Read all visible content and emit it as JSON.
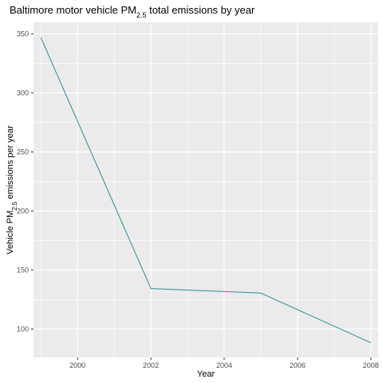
{
  "chart_data": {
    "type": "line",
    "title": {
      "prefix": "Baltimore motor vehicle PM",
      "subscript": "2.5",
      "suffix": " total emissions by year"
    },
    "xlabel": "Year",
    "ylabel": {
      "prefix": "Vehicle PM",
      "subscript": "2.5",
      "suffix": " emissions per year"
    },
    "x": [
      1999,
      2002,
      2005,
      2008
    ],
    "series": [
      {
        "values": [
          346.8,
          134.3,
          130.4,
          88.3
        ],
        "color": "#2e8b8b"
      }
    ],
    "xlim": [
      1998.8,
      2008.2
    ],
    "ylim": [
      75.9,
      359.7
    ],
    "x_ticks": [
      2000,
      2002,
      2004,
      2006,
      2008
    ],
    "y_ticks": [
      100,
      150,
      200,
      250,
      300,
      350
    ],
    "grid": true,
    "panel_background": "#ebebeb",
    "grid_color": "#ffffff"
  }
}
